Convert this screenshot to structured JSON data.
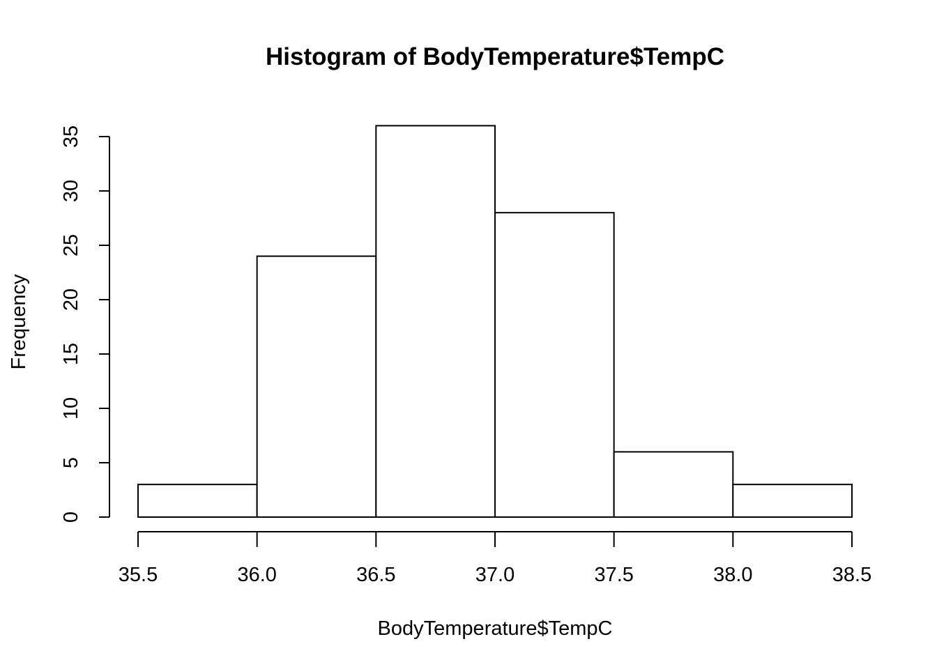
{
  "chart_data": {
    "type": "bar",
    "title": "Histogram of BodyTemperature$TempC",
    "xlabel": "BodyTemperature$TempC",
    "ylabel": "Frequency",
    "bins": [
      {
        "start": 35.5,
        "end": 36.0,
        "count": 3
      },
      {
        "start": 36.0,
        "end": 36.5,
        "count": 24
      },
      {
        "start": 36.5,
        "end": 37.0,
        "count": 36
      },
      {
        "start": 37.0,
        "end": 37.5,
        "count": 28
      },
      {
        "start": 37.5,
        "end": 38.0,
        "count": 6
      },
      {
        "start": 38.0,
        "end": 38.5,
        "count": 3
      }
    ],
    "xticks": [
      "35.5",
      "36.0",
      "36.5",
      "37.0",
      "37.5",
      "38.0",
      "38.5"
    ],
    "yticks": [
      "0",
      "5",
      "10",
      "15",
      "20",
      "25",
      "30",
      "35"
    ],
    "xlim": [
      35.5,
      38.5
    ],
    "ylim": [
      0,
      36
    ],
    "bar_fill": "#ffffff",
    "bar_stroke": "#000000",
    "grid": false,
    "legend": "none"
  }
}
